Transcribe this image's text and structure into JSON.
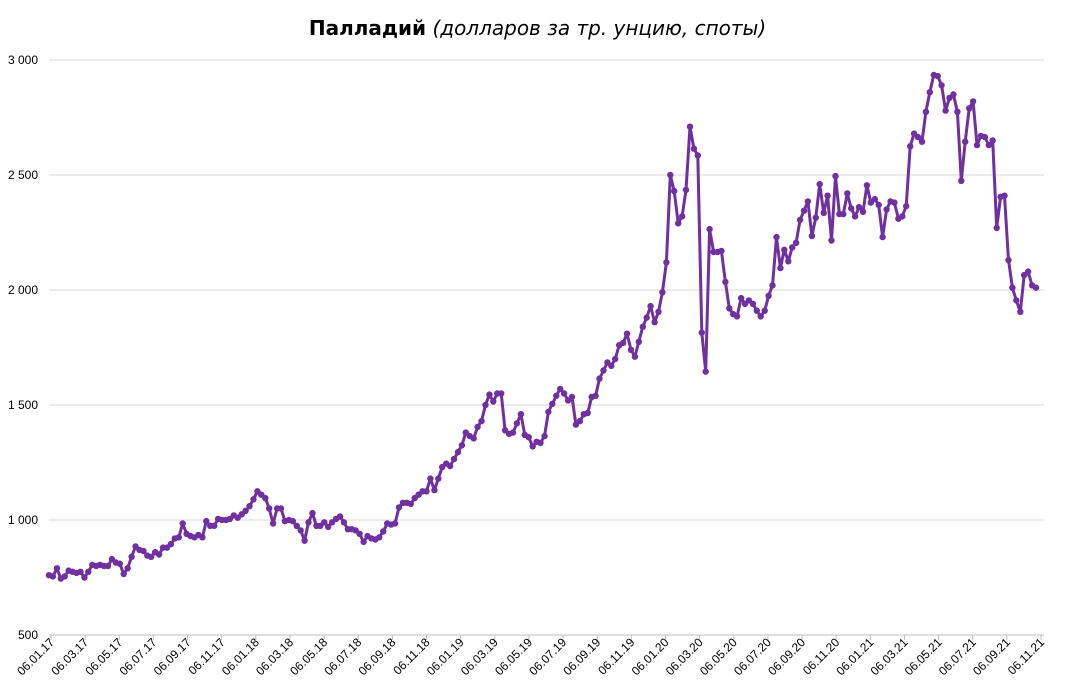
{
  "chart_data": {
    "type": "line",
    "title": "Палладий",
    "subtitle": "(долларов за тр. унцию, споты)",
    "ylim": [
      500,
      3000
    ],
    "yticks": [
      500,
      1000,
      1500,
      2000,
      2500,
      3000
    ],
    "ytick_labels": [
      "500",
      "1 000",
      "1 500",
      "2 000",
      "2 500",
      "3 000"
    ],
    "xtick_labels": [
      "06.01.17",
      "06.03.17",
      "06.05.17",
      "06.07.17",
      "06.09.17",
      "06.11.17",
      "06.01.18",
      "06.03.18",
      "06.05.18",
      "06.07.18",
      "06.09.18",
      "06.11.18",
      "06.01.19",
      "06.03.19",
      "06.05.19",
      "06.07.19",
      "06.09.19",
      "06.11.19",
      "06.01.20",
      "06.03.20",
      "06.05.20",
      "06.07.20",
      "06.09.20",
      "06.11.20",
      "06.01.21",
      "06.03.21",
      "06.05.21",
      "06.07.21",
      "06.09.21",
      "06.11.21"
    ],
    "grid": true,
    "legend": "none",
    "series_color": "#7030A0",
    "series": [
      {
        "values": [
          760,
          755,
          790,
          745,
          755,
          780,
          775,
          770,
          775,
          750,
          775,
          805,
          800,
          805,
          800,
          800,
          830,
          815,
          810,
          765,
          790,
          840,
          885,
          870,
          865,
          845,
          840,
          860,
          850,
          880,
          880,
          895,
          920,
          925,
          985,
          940,
          930,
          925,
          935,
          925,
          995,
          975,
          975,
          1005,
          1000,
          1000,
          1005,
          1020,
          1010,
          1025,
          1040,
          1060,
          1090,
          1125,
          1110,
          1095,
          1050,
          985,
          1050,
          1050,
          995,
          1000,
          995,
          975,
          955,
          910,
          990,
          1030,
          975,
          975,
          990,
          970,
          990,
          1005,
          1015,
          990,
          960,
          960,
          955,
          940,
          905,
          930,
          920,
          915,
          925,
          950,
          985,
          980,
          985,
          1055,
          1075,
          1075,
          1070,
          1095,
          1110,
          1125,
          1125,
          1180,
          1130,
          1180,
          1230,
          1245,
          1235,
          1265,
          1295,
          1325,
          1380,
          1365,
          1355,
          1405,
          1430,
          1500,
          1545,
          1515,
          1550,
          1550,
          1390,
          1375,
          1380,
          1420,
          1460,
          1370,
          1360,
          1320,
          1340,
          1335,
          1365,
          1470,
          1505,
          1540,
          1570,
          1550,
          1520,
          1535,
          1415,
          1430,
          1460,
          1465,
          1535,
          1540,
          1615,
          1650,
          1685,
          1670,
          1700,
          1760,
          1770,
          1810,
          1740,
          1710,
          1775,
          1840,
          1880,
          1930,
          1860,
          1905,
          1990,
          2120,
          2500,
          2430,
          2290,
          2320,
          2435,
          2710,
          2615,
          2585,
          1815,
          1645,
          2265,
          2165,
          2165,
          2170,
          2035,
          1920,
          1895,
          1885,
          1965,
          1940,
          1955,
          1940,
          1910,
          1885,
          1910,
          1975,
          2020,
          2230,
          2095,
          2175,
          2125,
          2185,
          2205,
          2305,
          2345,
          2385,
          2235,
          2315,
          2460,
          2335,
          2410,
          2215,
          2495,
          2330,
          2330,
          2420,
          2355,
          2320,
          2360,
          2340,
          2455,
          2380,
          2395,
          2370,
          2230,
          2350,
          2385,
          2380,
          2310,
          2320,
          2365,
          2625,
          2680,
          2665,
          2645,
          2775,
          2860,
          2935,
          2930,
          2890,
          2780,
          2835,
          2850,
          2775,
          2475,
          2645,
          2790,
          2820,
          2630,
          2670,
          2665,
          2630,
          2650,
          2270,
          2405,
          2410,
          2130,
          2010,
          1955,
          1905,
          2065,
          2080,
          2020,
          2010
        ]
      }
    ]
  }
}
